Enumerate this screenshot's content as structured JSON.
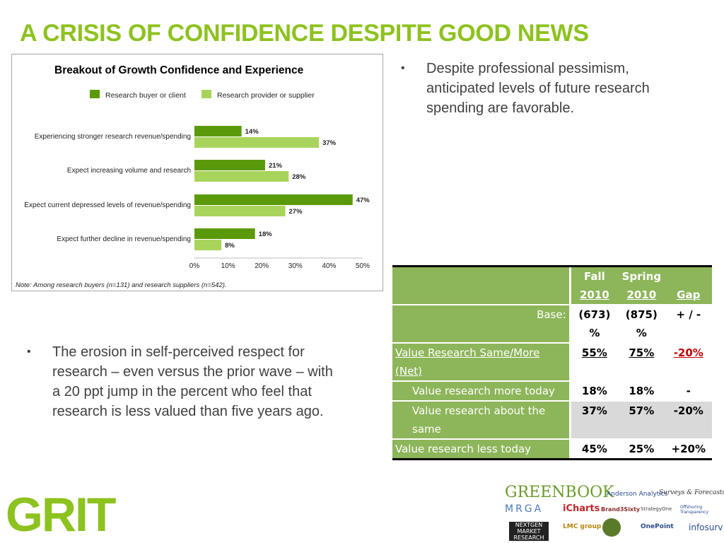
{
  "slide": {
    "title": "A CRISIS OF CONFIDENCE DESPITE GOOD NEWS",
    "bullet1": "Despite professional pessimism, anticipated levels of future research spending are favorable.",
    "bullet2": "The erosion in self-perceived respect for research – even versus the prior wave – with a 20 ppt jump in the percent who feel that research is less valued than five years ago.",
    "bullet_glyph": "•"
  },
  "chart_data": {
    "type": "bar",
    "orientation": "horizontal",
    "title": "Breakout of Growth Confidence and Experience",
    "categories": [
      "Experiencing stronger research revenue/spending",
      "Expect increasing volume and research",
      "Expect current depressed levels of revenue/spending",
      "Expect further decline in revenue/spending"
    ],
    "series": [
      {
        "name": "Research buyer or client",
        "values": [
          14,
          21,
          47,
          18
        ],
        "labels": [
          "14%",
          "21%",
          "47%",
          "18%"
        ],
        "color": "#5a9a0a"
      },
      {
        "name": "Research provider or supplier",
        "values": [
          37,
          28,
          27,
          8
        ],
        "labels": [
          "37%",
          "28%",
          "27%",
          "8%"
        ],
        "color": "#a8d45c"
      }
    ],
    "xlim": [
      0,
      50
    ],
    "xticks": [
      "0%",
      "10%",
      "20%",
      "30%",
      "40%",
      "50%"
    ],
    "legend_position": "top",
    "grid": false,
    "note": "Note: Among research buyers (n=131) and research suppliers (n=542)."
  },
  "table": {
    "header": {
      "fall": "Fall",
      "spring": "Spring",
      "fall_year": "2010",
      "spring_year": "2010",
      "gap": "Gap"
    },
    "base_label": "Base:",
    "base": {
      "fall": "(673)",
      "spring": "(875)",
      "gap": "+ / -"
    },
    "unit": {
      "fall": "%",
      "spring": "%"
    },
    "rows": [
      {
        "label": "Value Research Same/More (Net)",
        "fall": "55%",
        "spring": "75%",
        "gap": "-20%"
      },
      {
        "label": "Value research more today",
        "fall": "18%",
        "spring": "18%",
        "gap": "-"
      },
      {
        "label": "Value research about the same",
        "fall": "37%",
        "spring": "57%",
        "gap": "-20%"
      },
      {
        "label": "Value research less today",
        "fall": "45%",
        "spring": "25%",
        "gap": "+20%"
      }
    ]
  },
  "logos": {
    "grit": "GRIT",
    "partners": [
      "GREENBOOK",
      "Anderson Analytics",
      "Surveys & Forecasts, LLC",
      "MRGA",
      "iCharts",
      "Brand3Sixty",
      "StrategyOne",
      "Offshoring Transparency",
      "NEXTGEN MARKET RESEARCH",
      "LMC group",
      "OnePoint",
      "infosurv"
    ]
  },
  "colors": {
    "title": "#8dc21f",
    "table_green": "#8db55a",
    "negative": "#c00000"
  }
}
